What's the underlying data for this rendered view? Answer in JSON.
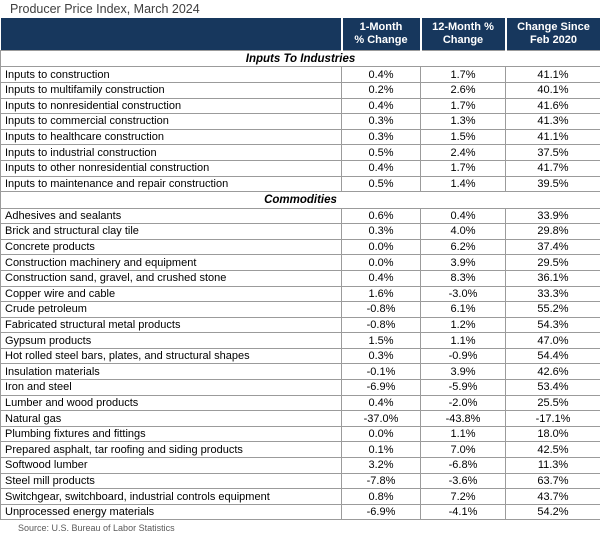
{
  "chart_data": {
    "type": "table",
    "title": "Producer Price Index, March 2024",
    "source": "Source: U.S. Bureau of Labor Statistics",
    "columns": [
      "1-Month\n% Change",
      "12-Month %\nChange",
      "Change Since\nFeb 2020"
    ],
    "sections": [
      {
        "label": "Inputs To Industries",
        "rows": [
          {
            "label": "Inputs to construction",
            "values": [
              "0.4%",
              "1.7%",
              "41.1%"
            ]
          },
          {
            "label": "Inputs to multifamily construction",
            "values": [
              "0.2%",
              "2.6%",
              "40.1%"
            ]
          },
          {
            "label": "Inputs to nonresidential construction",
            "values": [
              "0.4%",
              "1.7%",
              "41.6%"
            ]
          },
          {
            "label": "Inputs to commercial construction",
            "values": [
              "0.3%",
              "1.3%",
              "41.3%"
            ]
          },
          {
            "label": "Inputs to healthcare construction",
            "values": [
              "0.3%",
              "1.5%",
              "41.1%"
            ]
          },
          {
            "label": "Inputs to industrial construction",
            "values": [
              "0.5%",
              "2.4%",
              "37.5%"
            ]
          },
          {
            "label": "Inputs to other nonresidential construction",
            "values": [
              "0.4%",
              "1.7%",
              "41.7%"
            ]
          },
          {
            "label": "Inputs to maintenance and repair construction",
            "values": [
              "0.5%",
              "1.4%",
              "39.5%"
            ]
          }
        ]
      },
      {
        "label": "Commodities",
        "rows": [
          {
            "label": "Adhesives and sealants",
            "values": [
              "0.6%",
              "0.4%",
              "33.9%"
            ]
          },
          {
            "label": "Brick and structural clay tile",
            "values": [
              "0.3%",
              "4.0%",
              "29.8%"
            ]
          },
          {
            "label": "Concrete products",
            "values": [
              "0.0%",
              "6.2%",
              "37.4%"
            ]
          },
          {
            "label": "Construction machinery and equipment",
            "values": [
              "0.0%",
              "3.9%",
              "29.5%"
            ]
          },
          {
            "label": "Construction sand, gravel, and crushed stone",
            "values": [
              "0.4%",
              "8.3%",
              "36.1%"
            ]
          },
          {
            "label": "Copper wire and cable",
            "values": [
              "1.6%",
              "-3.0%",
              "33.3%"
            ]
          },
          {
            "label": "Crude petroleum",
            "values": [
              "-0.8%",
              "6.1%",
              "55.2%"
            ]
          },
          {
            "label": "Fabricated structural metal products",
            "values": [
              "-0.8%",
              "1.2%",
              "54.3%"
            ]
          },
          {
            "label": "Gypsum products",
            "values": [
              "1.5%",
              "1.1%",
              "47.0%"
            ]
          },
          {
            "label": "Hot rolled steel bars, plates, and structural shapes",
            "values": [
              "0.3%",
              "-0.9%",
              "54.4%"
            ]
          },
          {
            "label": "Insulation materials",
            "values": [
              "-0.1%",
              "3.9%",
              "42.6%"
            ]
          },
          {
            "label": "Iron and steel",
            "values": [
              "-6.9%",
              "-5.9%",
              "53.4%"
            ]
          },
          {
            "label": "Lumber and wood products",
            "values": [
              "0.4%",
              "-2.0%",
              "25.5%"
            ]
          },
          {
            "label": "Natural gas",
            "values": [
              "-37.0%",
              "-43.8%",
              "-17.1%"
            ]
          },
          {
            "label": "Plumbing fixtures and fittings",
            "values": [
              "0.0%",
              "1.1%",
              "18.0%"
            ]
          },
          {
            "label": "Prepared asphalt, tar roofing and siding products",
            "values": [
              "0.1%",
              "7.0%",
              "42.5%"
            ]
          },
          {
            "label": "Softwood lumber",
            "values": [
              "3.2%",
              "-6.8%",
              "11.3%"
            ]
          },
          {
            "label": "Steel mill products",
            "values": [
              "-7.8%",
              "-3.6%",
              "63.7%"
            ]
          },
          {
            "label": "Switchgear, switchboard, industrial controls equipment",
            "values": [
              "0.8%",
              "7.2%",
              "43.7%"
            ]
          },
          {
            "label": "Unprocessed energy materials",
            "values": [
              "-6.9%",
              "-4.1%",
              "54.2%"
            ]
          }
        ]
      }
    ],
    "layout": {
      "legend": "none",
      "grid": true
    }
  },
  "colors": {
    "header_bg": "#17375d",
    "header_text": "#ffffff",
    "grid_border": "#9b9b9b",
    "title_text": "#3f3f3f",
    "source_text": "#595959"
  }
}
